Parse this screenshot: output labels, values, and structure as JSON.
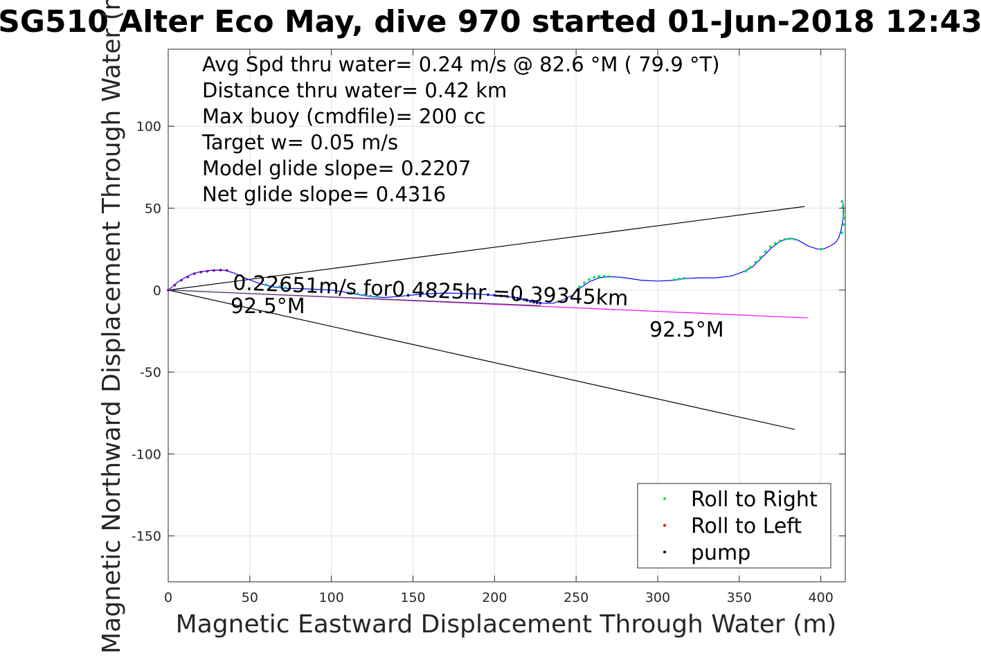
{
  "chart_data": {
    "type": "line",
    "title": "SG510 Alter Eco May, dive 970 started 01-Jun-2018 12:43",
    "xlabel": "Magnetic Eastward Displacement Through Water (m)",
    "ylabel": "Magnetic Northward Displacement Through Water (m)",
    "xlim": [
      0,
      415
    ],
    "ylim": [
      -178,
      147
    ],
    "xticks": [
      0,
      50,
      100,
      150,
      200,
      250,
      300,
      350,
      400
    ],
    "yticks": [
      100,
      50,
      0,
      -50,
      -100,
      -150
    ],
    "grid": true,
    "legend_position": "bottom-right",
    "legend": [
      {
        "label": "Roll to Right",
        "color": "#00ee00"
      },
      {
        "label": "Roll to Left",
        "color": "#ff0000"
      },
      {
        "label": "pump",
        "color": "#000000"
      }
    ],
    "info_lines": [
      "Avg Spd thru water=  0.24 m/s @  82.6 °M ( 79.9 °T)",
      "Distance thru water=  0.42 km",
      "Max buoy (cmdfile)= 200 cc",
      "Target w= 0.05 m/s",
      "Model glide slope= 0.2207",
      "Net glide slope= 0.4316"
    ],
    "annotations": {
      "speed_text": "0.22651m/s for0.4825hr =0.39345km",
      "heading_start": "92.5°M",
      "heading_end": "92.5°M"
    },
    "cone_lines": [
      {
        "name": "upper",
        "x": [
          0,
          390
        ],
        "y": [
          0,
          51
        ],
        "color": "#000000"
      },
      {
        "name": "lower",
        "x": [
          0,
          384
        ],
        "y": [
          0,
          -85
        ],
        "color": "#000000"
      },
      {
        "name": "heading",
        "x": [
          0,
          392
        ],
        "y": [
          0,
          -17
        ],
        "color": "#ff00ff"
      },
      {
        "name": "heading-dark",
        "x": [
          0,
          228
        ],
        "y": [
          0,
          -9.5
        ],
        "color": "#444466"
      }
    ],
    "series": [
      {
        "name": "track",
        "color": "#0000ff",
        "x": [
          0,
          3,
          6,
          10,
          14,
          18,
          22,
          26,
          30,
          35,
          40,
          48,
          56,
          64,
          72,
          80,
          90,
          100,
          110,
          118,
          125,
          132,
          140,
          150,
          160,
          170,
          180,
          190,
          200,
          210,
          218,
          224,
          230,
          236,
          242,
          248,
          252,
          258,
          264,
          270,
          278,
          290,
          300,
          310,
          316,
          325,
          335,
          345,
          352,
          358,
          362,
          366,
          370,
          374,
          378,
          382,
          386,
          392,
          398,
          402,
          406,
          409,
          411,
          412.5,
          413.5,
          414,
          413.6
        ],
        "y": [
          0,
          2.5,
          5,
          7.5,
          9.5,
          10.8,
          11.5,
          12,
          12.2,
          12,
          10.5,
          7,
          4,
          2,
          1,
          1,
          0.5,
          0,
          -1.5,
          -3,
          -4,
          -4.5,
          -4,
          -3,
          -2.2,
          -1.8,
          -2,
          -2.5,
          -3.2,
          -4.2,
          -5.5,
          -7,
          -8,
          -8,
          -6,
          -3,
          1,
          5,
          7.5,
          8.2,
          7.8,
          6,
          5.5,
          6,
          7,
          7.5,
          7.5,
          8.5,
          11,
          14,
          18,
          22,
          26,
          29,
          31,
          31.5,
          30.5,
          27,
          25,
          25.2,
          27,
          29,
          32,
          37,
          43,
          48,
          53
        ],
        "dots": [
          {
            "x": [
              0,
              4,
              8,
              12,
              16,
              20,
              24,
              28,
              32,
              36
            ],
            "y": [
              0,
              3,
              6,
              8,
              10,
              11,
              11.5,
              12,
              12.2,
              12
            ],
            "color": "#8b0080"
          },
          {
            "x": [
              60,
              64,
              68,
              72,
              112,
              116,
              120,
              124,
              128
            ],
            "y": [
              3.2,
              2.5,
              2,
              1.5,
              -1.5,
              -2.3,
              -3,
              -3.6,
              -4
            ],
            "color": "#00c0a0"
          },
          {
            "x": [
              196,
              200,
              204,
              208,
              212,
              214,
              216,
              218,
              220,
              222,
              224,
              226,
              228
            ],
            "y": [
              -2.8,
              -3.1,
              -3.5,
              -4,
              -4.5,
              -4.9,
              -5.3,
              -5.8,
              -6.3,
              -6.9,
              -7.4,
              -7.8,
              -8
            ],
            "color": "#1010a0"
          },
          {
            "x": [
              252,
              255,
              258,
              261,
              264,
              267,
              270,
              310,
              313,
              316,
              354,
              357,
              360,
              363,
              366,
              369,
              372,
              375,
              378,
              381,
              384,
              400,
              413,
              414,
              414,
              413.8,
              413.5,
              413
            ],
            "y": [
              2,
              4.5,
              6.5,
              7.8,
              8.3,
              8.4,
              8.2,
              6.3,
              6.8,
              7.2,
              11.5,
              14,
              17,
              20,
              23.5,
              26.5,
              28.5,
              30,
              31,
              31.3,
              31,
              25,
              35,
              40,
              44,
              48,
              51,
              54
            ],
            "color": "#00dd55"
          }
        ]
      }
    ]
  }
}
